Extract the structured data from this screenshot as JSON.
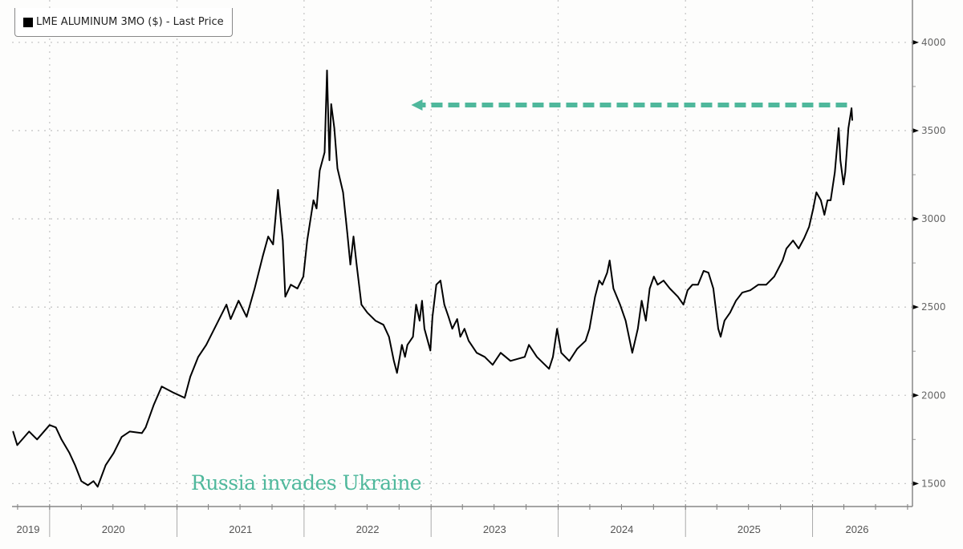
{
  "chart_data": {
    "type": "line",
    "title": "",
    "xlabel": "",
    "ylabel": "",
    "legend": {
      "label": "LME ALUMINUM 3MO ($) - Last Price",
      "placement": "top-left"
    },
    "xlim": [
      "2019-09-15",
      "2026-10-15"
    ],
    "ylim": [
      1370,
      4240
    ],
    "y_axis_side": "right",
    "yticks": [
      1500,
      2000,
      2500,
      3000,
      3500,
      4000
    ],
    "xtick_labels": [
      "2019",
      "2020",
      "2021",
      "2022",
      "2023",
      "2024",
      "2025",
      "2026"
    ],
    "grid": true,
    "colors": {
      "line": "#000000",
      "annotation": "#4fb89c",
      "grid": "#c8c8c8",
      "axis": "#888888"
    },
    "series": [
      {
        "values": [
          [
            "2019-09-18",
            1795
          ],
          [
            "2019-09-30",
            1718
          ],
          [
            "2019-11-03",
            1795
          ],
          [
            "2019-11-26",
            1750
          ],
          [
            "2020-01-01",
            1832
          ],
          [
            "2020-01-19",
            1818
          ],
          [
            "2020-02-04",
            1750
          ],
          [
            "2020-02-27",
            1673
          ],
          [
            "2020-03-14",
            1605
          ],
          [
            "2020-04-01",
            1514
          ],
          [
            "2020-04-20",
            1491
          ],
          [
            "2020-05-06",
            1514
          ],
          [
            "2020-05-18",
            1482
          ],
          [
            "2020-06-10",
            1605
          ],
          [
            "2020-07-03",
            1673
          ],
          [
            "2020-07-26",
            1764
          ],
          [
            "2020-08-18",
            1795
          ],
          [
            "2020-09-22",
            1786
          ],
          [
            "2020-10-03",
            1818
          ],
          [
            "2020-10-26",
            1945
          ],
          [
            "2020-11-18",
            2050
          ],
          [
            "2020-12-23",
            2014
          ],
          [
            "2021-01-23",
            1986
          ],
          [
            "2021-02-08",
            2105
          ],
          [
            "2021-03-03",
            2218
          ],
          [
            "2021-03-26",
            2286
          ],
          [
            "2021-04-30",
            2423
          ],
          [
            "2021-05-23",
            2514
          ],
          [
            "2021-06-04",
            2432
          ],
          [
            "2021-06-27",
            2536
          ],
          [
            "2021-07-20",
            2445
          ],
          [
            "2021-08-12",
            2605
          ],
          [
            "2021-09-04",
            2786
          ],
          [
            "2021-09-20",
            2900
          ],
          [
            "2021-10-04",
            2855
          ],
          [
            "2021-10-18",
            3164
          ],
          [
            "2021-11-01",
            2877
          ],
          [
            "2021-11-08",
            2559
          ],
          [
            "2021-11-24",
            2627
          ],
          [
            "2021-12-13",
            2605
          ],
          [
            "2021-12-30",
            2673
          ],
          [
            "2022-01-10",
            2877
          ],
          [
            "2022-01-28",
            3105
          ],
          [
            "2022-02-06",
            3059
          ],
          [
            "2022-02-15",
            3273
          ],
          [
            "2022-03-01",
            3377
          ],
          [
            "2022-03-08",
            3841
          ],
          [
            "2022-03-15",
            3332
          ],
          [
            "2022-03-20",
            3650
          ],
          [
            "2022-03-29",
            3514
          ],
          [
            "2022-04-07",
            3286
          ],
          [
            "2022-04-23",
            3150
          ],
          [
            "2022-05-05",
            2923
          ],
          [
            "2022-05-14",
            2741
          ],
          [
            "2022-05-23",
            2900
          ],
          [
            "2022-06-01",
            2741
          ],
          [
            "2022-06-15",
            2514
          ],
          [
            "2022-07-02",
            2468
          ],
          [
            "2022-07-25",
            2423
          ],
          [
            "2022-08-17",
            2400
          ],
          [
            "2022-09-02",
            2332
          ],
          [
            "2022-09-16",
            2195
          ],
          [
            "2022-09-25",
            2127
          ],
          [
            "2022-10-09",
            2286
          ],
          [
            "2022-10-18",
            2218
          ],
          [
            "2022-10-25",
            2286
          ],
          [
            "2022-11-10",
            2332
          ],
          [
            "2022-11-19",
            2514
          ],
          [
            "2022-11-29",
            2423
          ],
          [
            "2022-12-06",
            2536
          ],
          [
            "2022-12-13",
            2377
          ],
          [
            "2022-12-30",
            2254
          ],
          [
            "2023-01-05",
            2445
          ],
          [
            "2023-01-16",
            2627
          ],
          [
            "2023-01-28",
            2650
          ],
          [
            "2023-02-08",
            2514
          ],
          [
            "2023-02-20",
            2445
          ],
          [
            "2023-03-03",
            2377
          ],
          [
            "2023-03-17",
            2432
          ],
          [
            "2023-03-26",
            2332
          ],
          [
            "2023-04-07",
            2377
          ],
          [
            "2023-04-19",
            2309
          ],
          [
            "2023-05-12",
            2241
          ],
          [
            "2023-06-04",
            2218
          ],
          [
            "2023-06-27",
            2173
          ],
          [
            "2023-07-20",
            2241
          ],
          [
            "2023-08-17",
            2195
          ],
          [
            "2023-09-27",
            2218
          ],
          [
            "2023-10-09",
            2286
          ],
          [
            "2023-11-01",
            2218
          ],
          [
            "2023-12-06",
            2150
          ],
          [
            "2023-12-17",
            2218
          ],
          [
            "2023-12-29",
            2377
          ],
          [
            "2024-01-10",
            2241
          ],
          [
            "2024-02-02",
            2195
          ],
          [
            "2024-02-25",
            2264
          ],
          [
            "2024-03-20",
            2309
          ],
          [
            "2024-03-31",
            2377
          ],
          [
            "2024-04-16",
            2559
          ],
          [
            "2024-04-28",
            2650
          ],
          [
            "2024-05-07",
            2627
          ],
          [
            "2024-05-21",
            2695
          ],
          [
            "2024-05-28",
            2764
          ],
          [
            "2024-06-08",
            2605
          ],
          [
            "2024-06-27",
            2514
          ],
          [
            "2024-07-13",
            2423
          ],
          [
            "2024-08-01",
            2241
          ],
          [
            "2024-08-17",
            2377
          ],
          [
            "2024-08-28",
            2536
          ],
          [
            "2024-09-09",
            2423
          ],
          [
            "2024-09-20",
            2605
          ],
          [
            "2024-10-02",
            2673
          ],
          [
            "2024-10-13",
            2627
          ],
          [
            "2024-10-30",
            2650
          ],
          [
            "2024-11-17",
            2605
          ],
          [
            "2024-12-10",
            2559
          ],
          [
            "2024-12-26",
            2514
          ],
          [
            "2025-01-07",
            2595
          ],
          [
            "2025-01-21",
            2627
          ],
          [
            "2025-02-06",
            2627
          ],
          [
            "2025-02-22",
            2705
          ],
          [
            "2025-03-08",
            2695
          ],
          [
            "2025-03-22",
            2605
          ],
          [
            "2025-04-05",
            2377
          ],
          [
            "2025-04-12",
            2332
          ],
          [
            "2025-04-23",
            2423
          ],
          [
            "2025-05-09",
            2468
          ],
          [
            "2025-05-26",
            2536
          ],
          [
            "2025-06-13",
            2582
          ],
          [
            "2025-07-06",
            2595
          ],
          [
            "2025-07-29",
            2627
          ],
          [
            "2025-08-21",
            2627
          ],
          [
            "2025-09-13",
            2673
          ],
          [
            "2025-10-07",
            2764
          ],
          [
            "2025-10-18",
            2832
          ],
          [
            "2025-11-06",
            2877
          ],
          [
            "2025-11-22",
            2832
          ],
          [
            "2025-12-08",
            2891
          ],
          [
            "2025-12-22",
            2955
          ],
          [
            "2026-01-03",
            3059
          ],
          [
            "2026-01-12",
            3150
          ],
          [
            "2026-01-25",
            3105
          ],
          [
            "2026-02-04",
            3023
          ],
          [
            "2026-02-13",
            3105
          ],
          [
            "2026-02-22",
            3105
          ],
          [
            "2026-03-06",
            3264
          ],
          [
            "2026-03-17",
            3514
          ],
          [
            "2026-03-22",
            3332
          ],
          [
            "2026-03-31",
            3195
          ],
          [
            "2026-04-05",
            3264
          ],
          [
            "2026-04-14",
            3514
          ],
          [
            "2026-04-23",
            3627
          ],
          [
            "2026-04-25",
            3559
          ]
        ]
      }
    ],
    "annotations": [
      {
        "type": "text",
        "text": "Russia invades Ukraine"
      },
      {
        "type": "dashed-arrow",
        "value": 3645,
        "from": "2026-04-10",
        "to": "2022-11-05",
        "direction": "left"
      }
    ]
  }
}
